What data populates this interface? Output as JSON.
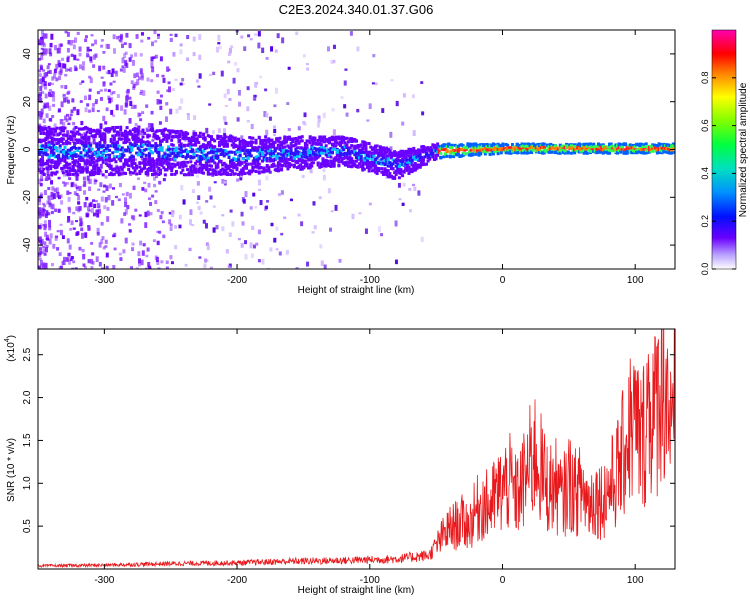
{
  "figure": {
    "title": "C2E3.2024.340.01.37.G06"
  },
  "chart_data": [
    {
      "type": "heatmap",
      "title": "C2E3.2024.340.01.37.G06",
      "xlabel": "Height of straight line (km)",
      "ylabel": "Frequency (Hz)",
      "xlim": [
        -350,
        130
      ],
      "ylim": [
        -50,
        50
      ],
      "x_ticks": [
        -300,
        -200,
        -100,
        0,
        100
      ],
      "y_ticks": [
        -40,
        -20,
        0,
        20,
        40
      ],
      "colorbar": {
        "label": "Normalized spectral amplitude",
        "range": [
          0,
          1
        ],
        "ticks": [
          0.0,
          0.2,
          0.4,
          0.6,
          0.8
        ],
        "colors": [
          "#ffffff",
          "#b8b8ff",
          "#5000ff",
          "#0000ff",
          "#00b0ff",
          "#00ff80",
          "#60ff00",
          "#ffff00",
          "#ff8000",
          "#ff0000",
          "#ff00b0"
        ]
      },
      "ridge": {
        "description_points": [
          {
            "x": -270,
            "center": 0,
            "spread": 10
          },
          {
            "x": -200,
            "center": -2,
            "spread": 8
          },
          {
            "x": -120,
            "center": 0,
            "spread": 6
          },
          {
            "x": -80,
            "center": -6,
            "spread": 6
          },
          {
            "x": -50,
            "center": 0,
            "spread": 3
          },
          {
            "x": 0,
            "center": 1,
            "spread": 2
          },
          {
            "x": 130,
            "center": 1,
            "spread": 2
          }
        ]
      }
    },
    {
      "type": "line",
      "xlabel": "Height of straight line (km)",
      "ylabel": "SNR (10 * v/v)",
      "y_multiplier_label": "(x10",
      "y_multiplier_exp": "4",
      "y_multiplier_close": ")",
      "xlim": [
        -350,
        130
      ],
      "ylim": [
        0,
        2.8
      ],
      "x_ticks": [
        -300,
        -200,
        -100,
        0,
        100
      ],
      "y_ticks": [
        0.5,
        1.0,
        1.5,
        2.0,
        2.5
      ],
      "series": [
        {
          "color": "#e8191c",
          "x": [
            -350,
            -300,
            -250,
            -200,
            -160,
            -120,
            -80,
            -55,
            -45,
            -40,
            -35,
            -30,
            -25,
            -20,
            -15,
            -10,
            -5,
            0,
            5,
            10,
            15,
            20,
            25,
            30,
            35,
            40,
            45,
            50,
            55,
            60,
            65,
            70,
            75,
            80,
            85,
            90,
            95,
            100,
            105,
            110,
            115,
            120,
            122,
            125,
            128,
            130
          ],
          "y": [
            0.04,
            0.05,
            0.07,
            0.08,
            0.1,
            0.11,
            0.13,
            0.18,
            0.45,
            0.55,
            0.6,
            0.65,
            0.6,
            0.8,
            0.9,
            0.85,
            1.0,
            1.1,
            1.2,
            1.0,
            1.15,
            1.4,
            1.6,
            1.3,
            1.1,
            1.15,
            0.95,
            1.2,
            1.05,
            1.1,
            0.9,
            1.0,
            0.95,
            1.1,
            1.25,
            1.5,
            1.9,
            2.0,
            1.7,
            2.3,
            2.1,
            2.8,
            2.6,
            2.4,
            1.5,
            2.5
          ]
        }
      ]
    }
  ]
}
